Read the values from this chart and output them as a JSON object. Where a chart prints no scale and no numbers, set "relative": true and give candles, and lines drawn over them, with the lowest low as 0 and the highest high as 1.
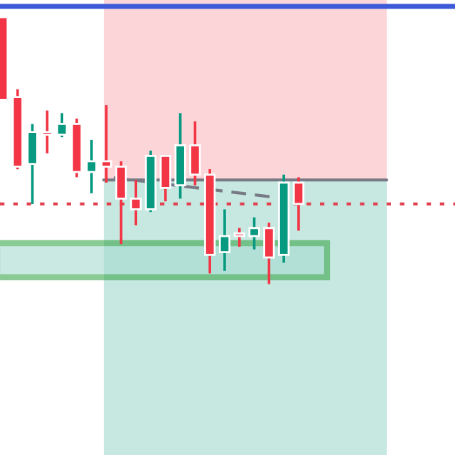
{
  "chart_data": {
    "type": "candlestick",
    "relative": true,
    "categories": [
      null,
      null,
      null,
      null,
      null,
      null,
      null,
      null,
      null,
      null,
      null,
      null,
      null,
      null,
      null,
      null,
      null,
      null,
      null,
      null,
      null,
      null,
      null,
      null,
      null,
      null,
      null,
      null,
      null,
      null,
      null
    ],
    "ohlc": [
      [
        1.0,
        1.0,
        0.69,
        0.69
      ],
      [
        0.7,
        0.73,
        0.43,
        0.44
      ],
      [
        0.45,
        0.6,
        0.3,
        0.57
      ],
      [
        0.57,
        0.65,
        0.49,
        0.56
      ],
      [
        0.56,
        0.64,
        0.55,
        0.6
      ],
      [
        0.6,
        0.62,
        0.4,
        0.42
      ],
      [
        0.42,
        0.54,
        0.34,
        0.46
      ],
      [
        0.46,
        0.67,
        0.38,
        0.44
      ],
      [
        0.44,
        0.46,
        0.15,
        0.32
      ],
      [
        0.32,
        0.39,
        0.22,
        0.28
      ],
      [
        0.28,
        0.5,
        0.27,
        0.48
      ],
      [
        0.48,
        0.48,
        0.31,
        0.36
      ],
      [
        0.37,
        0.64,
        0.32,
        0.52
      ],
      [
        0.52,
        0.61,
        0.37,
        0.41
      ],
      [
        0.41,
        0.43,
        0.04,
        0.11
      ],
      [
        0.12,
        0.28,
        0.05,
        0.18
      ],
      [
        0.19,
        0.21,
        0.14,
        0.18
      ],
      [
        0.18,
        0.25,
        0.13,
        0.21
      ],
      [
        0.21,
        0.23,
        0.0,
        0.1
      ],
      [
        0.11,
        0.41,
        0.08,
        0.38
      ],
      [
        0.38,
        0.4,
        0.2,
        0.3
      ],
      null,
      null,
      null,
      null,
      null,
      null,
      null,
      null,
      null,
      null
    ],
    "colors": [
      "#f23645",
      "#f23645",
      "#089981",
      "#f23645",
      "#089981",
      "#f23645",
      "#089981",
      "#f23645",
      "#f23645",
      "#f23645",
      "#089981",
      "#f23645",
      "#089981",
      "#f23645",
      "#f23645",
      "#089981",
      "#f23645",
      "#089981",
      "#f23645",
      "#089981",
      "#f23645",
      null,
      null,
      null,
      null,
      null,
      null,
      null,
      null,
      null,
      null
    ],
    "ref_lines": [
      {
        "axis": "y",
        "value": 0.39,
        "color": "#787b86",
        "line_style": "solid"
      },
      {
        "axis": "y",
        "value": 0.3,
        "color": "#e0424f",
        "line_style": "dotted"
      },
      {
        "axis": "y",
        "value": 1.04,
        "color": "#3d5bd9",
        "line_style": "solid"
      }
    ]
  }
}
